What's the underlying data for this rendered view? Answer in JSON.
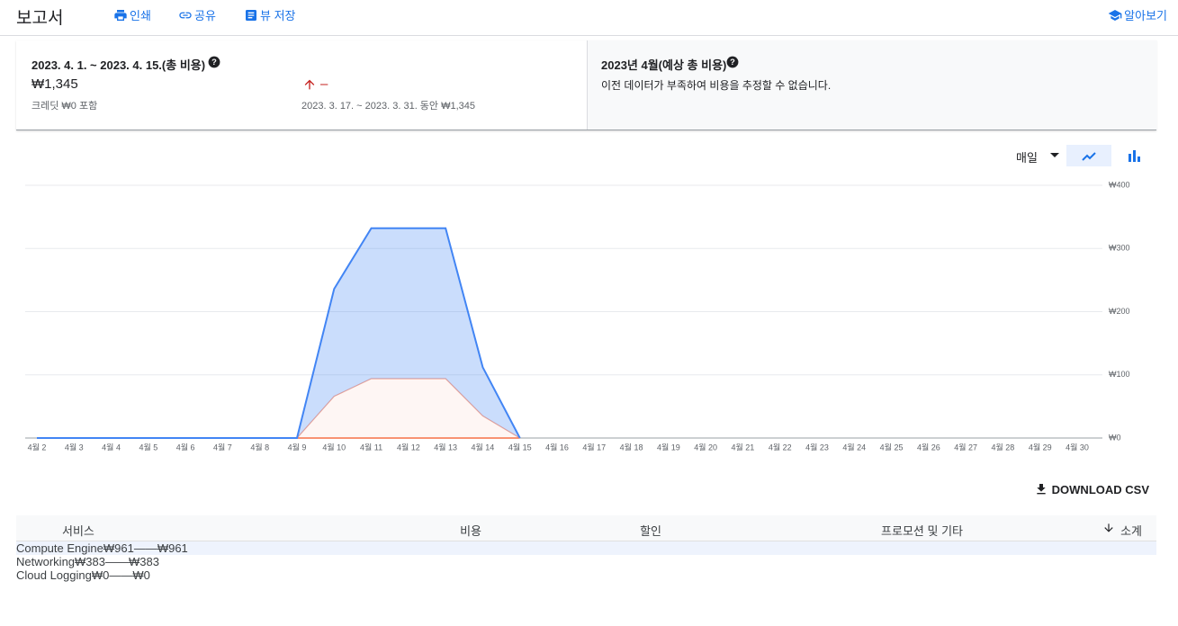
{
  "header": {
    "title": "보고서",
    "actions": [
      "인쇄",
      "공유",
      "뷰 저장"
    ],
    "help": "알아보기"
  },
  "summary": {
    "period": "2023. 4. 1. ~ 2023. 4. 15.(총 비용)",
    "total": "₩1,345",
    "credit": "크레딧 ₩0 포함",
    "change": "–",
    "comparison": "2023. 3. 17. ~ 2023. 3. 31. 동안 ₩1,345",
    "forecast_title": "2023년 4월(예상 총 비용)",
    "forecast_note": "이전 데이터가 부족하여 비용을 추정할 수 없습니다."
  },
  "controls": {
    "granularity": "매일"
  },
  "chart_data": {
    "type": "area",
    "stacked": true,
    "categories": [
      "4월 2",
      "4월 3",
      "4월 4",
      "4월 5",
      "4월 6",
      "4월 7",
      "4월 8",
      "4월 9",
      "4월 10",
      "4월 11",
      "4월 12",
      "4월 13",
      "4월 14",
      "4월 15",
      "4월 16",
      "4월 17",
      "4월 18",
      "4월 19",
      "4월 20",
      "4월 21",
      "4월 22",
      "4월 23",
      "4월 24",
      "4월 25",
      "4월 26",
      "4월 27",
      "4월 28",
      "4월 29",
      "4월 30"
    ],
    "series": [
      {
        "name": "Cloud Logging",
        "color": "#f4511e",
        "values": [
          0,
          0,
          0,
          0,
          0,
          0,
          0,
          0,
          0,
          0,
          0,
          0,
          0,
          0,
          null,
          null,
          null,
          null,
          null,
          null,
          null,
          null,
          null,
          null,
          null,
          null,
          null,
          null,
          null
        ]
      },
      {
        "name": "Networking",
        "color": "#f2a594",
        "values": [
          0,
          0,
          0,
          0,
          0,
          0,
          0,
          0,
          66,
          94,
          94,
          94,
          35,
          0,
          null,
          null,
          null,
          null,
          null,
          null,
          null,
          null,
          null,
          null,
          null,
          null,
          null,
          null,
          null
        ]
      },
      {
        "name": "Compute Engine",
        "color": "#4285f4",
        "values": [
          0,
          0,
          0,
          0,
          0,
          0,
          0,
          0,
          170,
          238,
          238,
          238,
          77,
          0,
          null,
          null,
          null,
          null,
          null,
          null,
          null,
          null,
          null,
          null,
          null,
          null,
          null,
          null,
          null
        ]
      }
    ],
    "ylim": [
      0,
      400
    ],
    "yticks": [
      {
        "value": 0,
        "label": "₩0"
      },
      {
        "value": 100,
        "label": "₩100"
      },
      {
        "value": 200,
        "label": "₩200"
      },
      {
        "value": 300,
        "label": "₩300"
      },
      {
        "value": 400,
        "label": "₩400"
      }
    ],
    "grid": true
  },
  "download": "DOWNLOAD CSV",
  "table": {
    "columns": [
      "서비스",
      "비용",
      "할인",
      "프로모션 및 기타",
      "소계"
    ],
    "dot_colors": [
      "#4285f4",
      "#fb8c00",
      "#f4511e"
    ],
    "rows": [
      [
        "₩961",
        "—",
        "—",
        "₩961"
      ],
      [
        "₩383",
        "—",
        "—",
        "₩383"
      ],
      [
        "₩0",
        "—",
        "—",
        "₩0"
      ]
    ]
  }
}
